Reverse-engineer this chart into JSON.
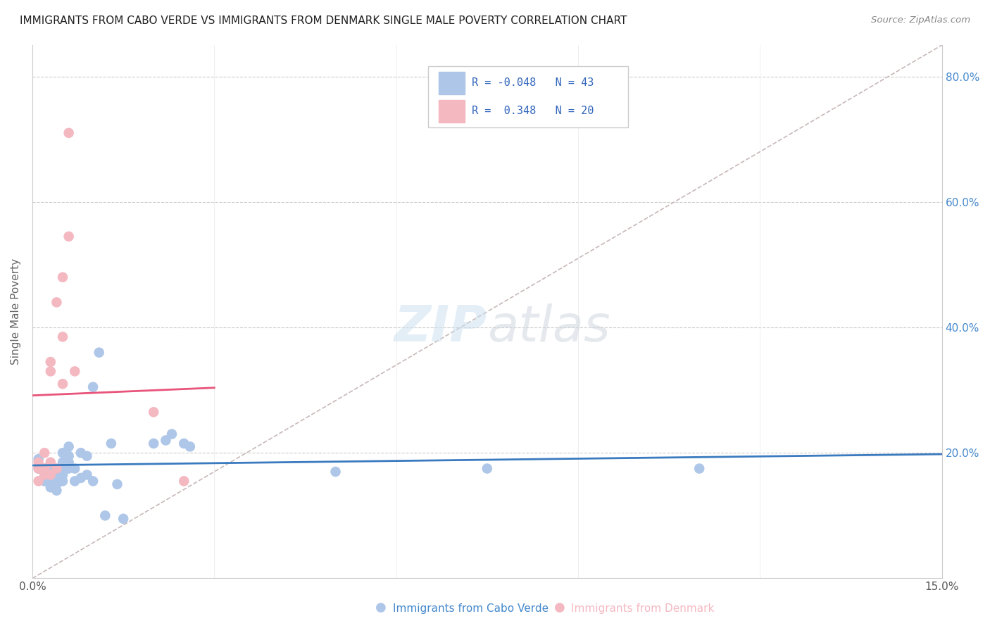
{
  "title": "IMMIGRANTS FROM CABO VERDE VS IMMIGRANTS FROM DENMARK SINGLE MALE POVERTY CORRELATION CHART",
  "source": "Source: ZipAtlas.com",
  "xlabel_cabo": "Immigrants from Cabo Verde",
  "xlabel_dk": "Immigrants from Denmark",
  "ylabel": "Single Male Poverty",
  "xlim": [
    0.0,
    0.15
  ],
  "ylim": [
    0.0,
    0.85
  ],
  "R_cabo": -0.048,
  "N_cabo": 43,
  "R_dk": 0.348,
  "N_dk": 20,
  "cabo_color": "#aec6e8",
  "dk_color": "#f4b8c1",
  "cabo_line_color": "#3a7abf",
  "dk_line_color": "#e8547a",
  "diagonal_color": "#c8b8b8",
  "cabo_points_x": [
    0.001,
    0.001,
    0.002,
    0.002,
    0.002,
    0.003,
    0.003,
    0.003,
    0.003,
    0.004,
    0.004,
    0.004,
    0.004,
    0.005,
    0.005,
    0.005,
    0.005,
    0.005,
    0.006,
    0.006,
    0.006,
    0.006,
    0.007,
    0.007,
    0.008,
    0.008,
    0.009,
    0.009,
    0.01,
    0.01,
    0.011,
    0.012,
    0.013,
    0.014,
    0.015,
    0.02,
    0.022,
    0.023,
    0.025,
    0.026,
    0.05,
    0.075,
    0.11
  ],
  "cabo_points_y": [
    0.175,
    0.19,
    0.155,
    0.165,
    0.175,
    0.145,
    0.155,
    0.165,
    0.18,
    0.16,
    0.15,
    0.14,
    0.175,
    0.185,
    0.2,
    0.165,
    0.155,
    0.17,
    0.195,
    0.185,
    0.21,
    0.175,
    0.175,
    0.155,
    0.2,
    0.16,
    0.165,
    0.195,
    0.155,
    0.305,
    0.36,
    0.1,
    0.215,
    0.15,
    0.095,
    0.215,
    0.22,
    0.23,
    0.215,
    0.21,
    0.17,
    0.175,
    0.175
  ],
  "dk_points_x": [
    0.001,
    0.001,
    0.001,
    0.002,
    0.002,
    0.002,
    0.003,
    0.003,
    0.003,
    0.003,
    0.004,
    0.004,
    0.005,
    0.005,
    0.005,
    0.006,
    0.006,
    0.007,
    0.02,
    0.025
  ],
  "dk_points_y": [
    0.155,
    0.175,
    0.185,
    0.165,
    0.175,
    0.2,
    0.33,
    0.345,
    0.165,
    0.185,
    0.44,
    0.175,
    0.48,
    0.385,
    0.31,
    0.545,
    0.71,
    0.33,
    0.265,
    0.155
  ],
  "cabo_line_x0": 0.0,
  "cabo_line_x1": 0.15,
  "dk_line_x0": 0.0,
  "dk_line_x1": 0.03
}
